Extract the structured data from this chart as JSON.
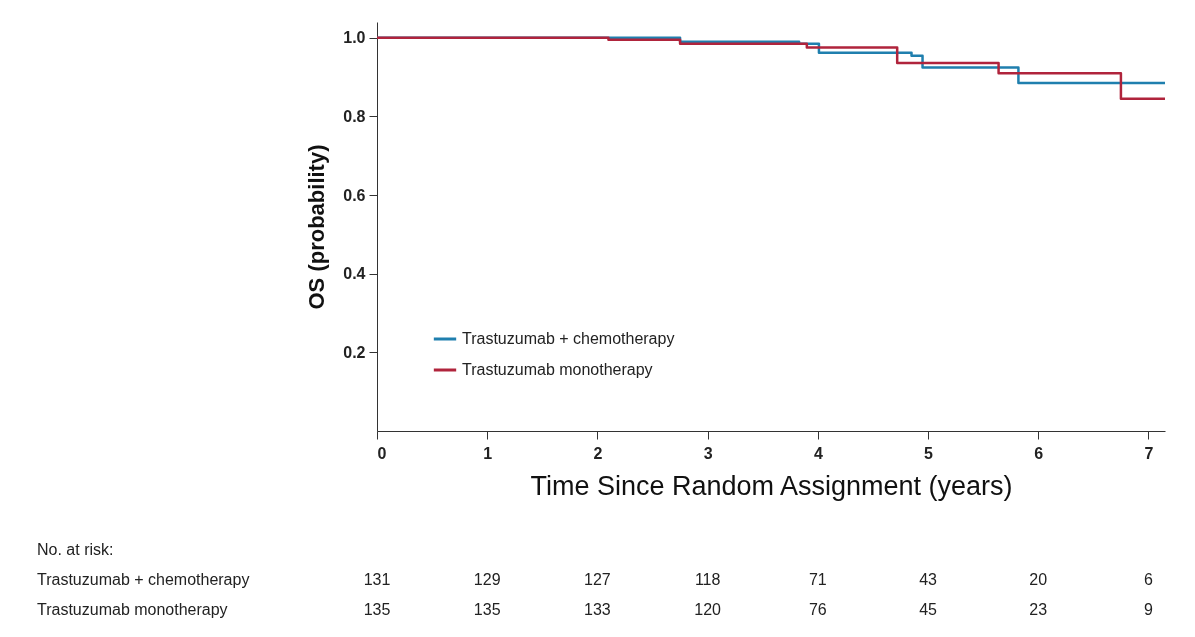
{
  "chart_data": {
    "type": "step",
    "xlabel": "Time Since Random Assignment (years)",
    "ylabel": "OS (probability)",
    "xlim": [
      0,
      7.15
    ],
    "ylim": [
      0,
      1.04
    ],
    "xticks": [
      0,
      1,
      2,
      3,
      4,
      5,
      6,
      7
    ],
    "yticks": [
      {
        "value": 0.2,
        "label": "0.2"
      },
      {
        "value": 0.4,
        "label": "0.4"
      },
      {
        "value": 0.6,
        "label": "0.6"
      },
      {
        "value": 0.8,
        "label": "0.8"
      },
      {
        "value": 1,
        "label": "1.0"
      }
    ],
    "grid": false,
    "legend": "bottom left",
    "line_style": "solid",
    "marker": "none",
    "series": [
      {
        "name": "Trastuzumab + chemotherapy",
        "color": "#1f7fae",
        "x": [
          0,
          2.75,
          3.83,
          4.01,
          4.85,
          4.95,
          5.82,
          7.15
        ],
        "values": [
          1.0,
          0.99,
          0.985,
          0.962,
          0.954,
          0.924,
          0.885,
          0.885
        ]
      },
      {
        "name": "Trastuzumab monotherapy",
        "color": "#b0243c",
        "x": [
          0,
          2.1,
          2.75,
          3.9,
          4.72,
          5.64,
          6.75,
          7.15
        ],
        "values": [
          1.0,
          0.995,
          0.985,
          0.975,
          0.936,
          0.91,
          0.845,
          0.845
        ]
      }
    ],
    "annotations": [
      "No. at risk:",
      "Trastuzumab + chemotherapy",
      "131",
      "129",
      "127",
      "118",
      "71",
      "43",
      "20",
      "6",
      "Trastuzumab monotherapy",
      "135",
      "135",
      "133",
      "120",
      "76",
      "45",
      "23",
      "9"
    ]
  }
}
